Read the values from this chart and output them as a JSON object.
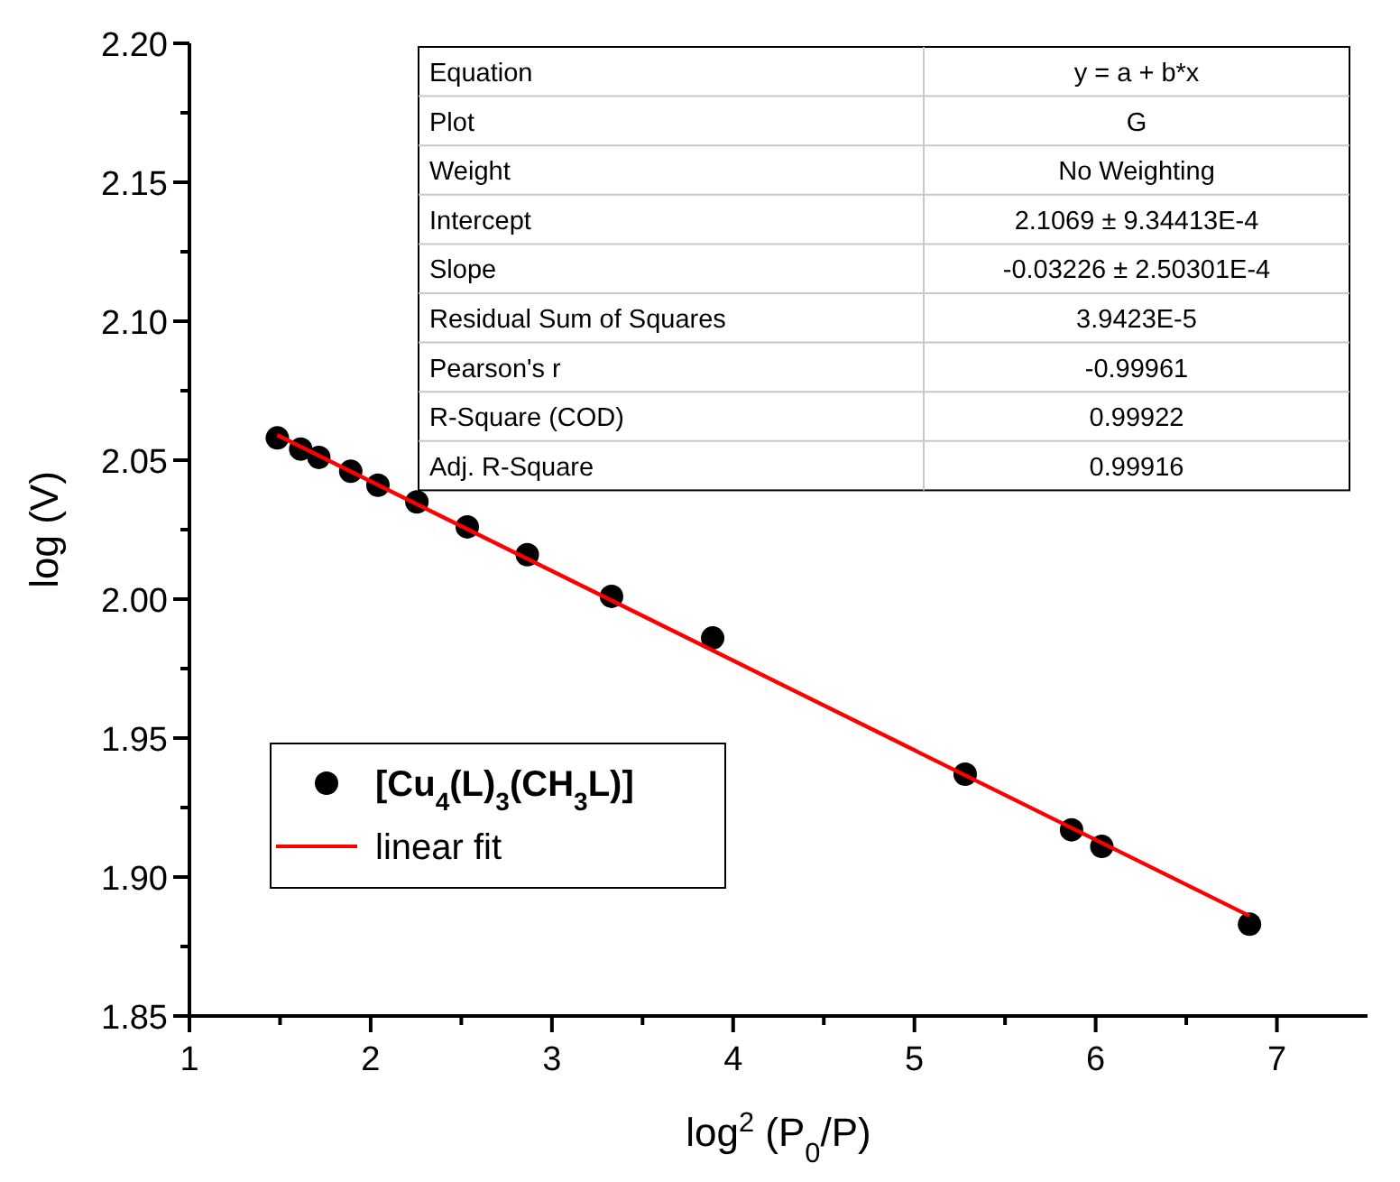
{
  "chart_data": {
    "type": "scatter",
    "xlabel": "log$^{2}$ (P$_{0}$/P)",
    "ylabel": "log (V)",
    "xlim": [
      1,
      7.5
    ],
    "ylim": [
      1.85,
      2.2
    ],
    "xticks": [
      1,
      {
        "value": 1.5,
        "label": null
      },
      2,
      {
        "value": 2.5,
        "label": null
      },
      3,
      {
        "value": 3.5,
        "label": null
      },
      4,
      {
        "value": 4.5,
        "label": null
      },
      5,
      {
        "value": 5.5,
        "label": null
      },
      6,
      {
        "value": 6.5,
        "label": null
      },
      7
    ],
    "yticks": [
      {
        "value": 1.85,
        "label": "1.85"
      },
      {
        "value": 1.875,
        "label": null
      },
      {
        "value": 1.9,
        "label": "1.90"
      },
      {
        "value": 1.925,
        "label": null
      },
      {
        "value": 1.95,
        "label": "1.95"
      },
      {
        "value": 1.975,
        "label": null
      },
      {
        "value": 2.0,
        "label": "2.00"
      },
      {
        "value": 2.025,
        "label": null
      },
      {
        "value": 2.05,
        "label": "2.05"
      },
      {
        "value": 2.075,
        "label": null
      },
      {
        "value": 2.1,
        "label": "2.10"
      },
      {
        "value": 2.125,
        "label": null
      },
      {
        "value": 2.15,
        "label": "2.15"
      },
      {
        "value": 2.175,
        "label": null
      },
      {
        "value": 2.2,
        "label": "2.20"
      }
    ],
    "legend": "bottom left",
    "series": [
      {
        "name": "[Cu$_{4}$(L)$_{3}$(CH$_{3}$L)]",
        "marker": "circle",
        "color": "#000000",
        "x": [
          1.485,
          1.614,
          1.714,
          1.89,
          2.04,
          2.255,
          2.533,
          2.864,
          3.329,
          3.887,
          5.28,
          5.867,
          6.034,
          6.849
        ],
        "values": [
          2.058,
          2.054,
          2.051,
          2.046,
          2.041,
          2.035,
          2.026,
          2.016,
          2.001,
          1.986,
          1.937,
          1.917,
          1.911,
          1.883
        ]
      },
      {
        "name": "linear fit",
        "type": "line",
        "color": "#ff0000",
        "x": [
          1.485,
          6.849
        ],
        "values": [
          2.059,
          1.886
        ]
      }
    ],
    "annotations": [
      "Equation",
      "y = a + b*x",
      "Plot",
      "G",
      "Weight",
      "No Weighting",
      "Intercept",
      "2.1069 ± 9.34413E-4",
      "Slope",
      "-0.03226 ± 2.50301E-4",
      "Residual Sum of Squares",
      "3.9423E-5",
      "Pearson's r",
      "-0.99961",
      "R-Square (COD)",
      "0.99922",
      "Adj. R-Square",
      "0.99916"
    ]
  }
}
